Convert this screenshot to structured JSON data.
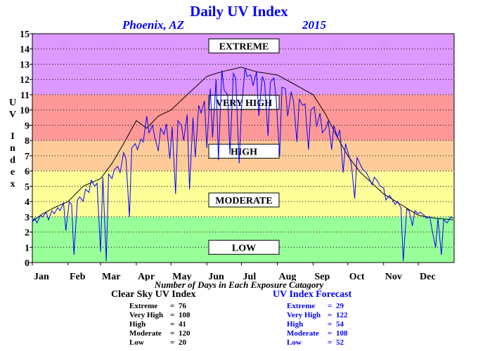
{
  "chart_data": {
    "type": "line",
    "title": "Daily UV Index",
    "location": "Phoenix, AZ",
    "year": "2015",
    "ylabel": "UV Index",
    "ylim": [
      0,
      15
    ],
    "yticks": [
      "0",
      "1",
      "2",
      "3",
      "4",
      "5",
      "6",
      "7",
      "8",
      "9",
      "10",
      "11",
      "12",
      "13",
      "14",
      "15"
    ],
    "month_labels": [
      "Jan",
      "Feb",
      "Mar",
      "Apr",
      "May",
      "Jun",
      "Jul",
      "Aug",
      "Sep",
      "Oct",
      "Nov",
      "Dec"
    ],
    "grid": "horizontal dotted",
    "bands": [
      {
        "label": "LOW",
        "from": 0,
        "to": 3,
        "color": "#99ff99"
      },
      {
        "label": "MODERATE",
        "from": 3,
        "to": 6,
        "color": "#ffff99"
      },
      {
        "label": "HIGH",
        "from": 6,
        "to": 8,
        "color": "#ffcc99"
      },
      {
        "label": "VERY HIGH",
        "from": 8,
        "to": 11,
        "color": "#ff9999"
      },
      {
        "label": "EXTREME",
        "from": 11,
        "to": 15,
        "color": "#dd99ff"
      }
    ],
    "band_label_values": [
      1,
      4.1,
      7.3,
      10.5,
      14.2
    ],
    "series": [
      {
        "color": "#000000",
        "day": [
          1,
          10,
          20,
          32,
          45,
          60,
          70,
          80,
          91,
          100,
          110,
          121,
          135,
          152,
          160,
          170,
          182,
          195,
          213,
          225,
          244,
          255,
          265,
          274,
          285,
          295,
          305,
          320,
          335,
          350,
          365
        ],
        "values": [
          2.7,
          3.2,
          3.6,
          4.0,
          5.0,
          5.5,
          6.5,
          7.8,
          9.3,
          8.8,
          9.6,
          10.0,
          11.0,
          12.2,
          12.4,
          12.6,
          12.8,
          12.5,
          12.3,
          11.8,
          11.0,
          9.7,
          8.2,
          7.0,
          5.9,
          5.2,
          4.5,
          3.8,
          3.1,
          2.9,
          2.8
        ]
      },
      {
        "color": "#0000ff",
        "day": [
          1,
          3,
          5,
          8,
          10,
          13,
          15,
          18,
          20,
          23,
          25,
          28,
          30,
          33,
          35,
          37,
          40,
          42,
          45,
          47,
          50,
          52,
          55,
          57,
          60,
          62,
          65,
          67,
          70,
          72,
          75,
          77,
          80,
          82,
          85,
          87,
          90,
          92,
          95,
          97,
          100,
          102,
          105,
          107,
          110,
          112,
          115,
          117,
          120,
          122,
          125,
          127,
          130,
          132,
          135,
          137,
          140,
          142,
          145,
          147,
          150,
          152,
          155,
          157,
          160,
          162,
          165,
          167,
          170,
          172,
          175,
          177,
          180,
          182,
          185,
          187,
          190,
          192,
          195,
          197,
          200,
          202,
          205,
          207,
          210,
          212,
          215,
          217,
          220,
          222,
          225,
          227,
          230,
          232,
          235,
          237,
          240,
          242,
          245,
          247,
          250,
          252,
          255,
          257,
          260,
          262,
          265,
          267,
          270,
          272,
          275,
          277,
          280,
          282,
          285,
          287,
          290,
          292,
          295,
          297,
          300,
          302,
          305,
          307,
          310,
          312,
          315,
          317,
          320,
          322,
          325,
          327,
          330,
          332,
          335,
          337,
          340,
          342,
          345,
          347,
          350,
          352,
          355,
          357,
          360,
          363,
          365
        ],
        "values": [
          2.7,
          2.9,
          2.6,
          3.1,
          3.0,
          3.3,
          2.8,
          3.4,
          3.2,
          3.6,
          3.4,
          3.9,
          2.1,
          4.0,
          3.8,
          0.5,
          4.1,
          4.3,
          4.0,
          4.8,
          4.6,
          5.4,
          5.0,
          5.2,
          0.7,
          5.6,
          0.1,
          5.8,
          5.5,
          6.1,
          6.3,
          5.9,
          7.2,
          6.8,
          3.0,
          7.5,
          7.8,
          7.4,
          8.1,
          7.9,
          9.6,
          8.5,
          9.0,
          8.2,
          7.3,
          8.8,
          8.4,
          9.1,
          6.8,
          8.9,
          4.5,
          9.3,
          9.0,
          8.0,
          9.7,
          4.8,
          9.5,
          6.9,
          10.3,
          9.8,
          10.6,
          7.5,
          11.4,
          8.2,
          12.0,
          6.7,
          12.6,
          11.3,
          11.0,
          7.1,
          12.4,
          12.1,
          6.5,
          10.1,
          12.7,
          12.2,
          12.3,
          11.6,
          12.5,
          9.6,
          12.2,
          11.8,
          8.3,
          11.8,
          12.1,
          10.8,
          7.0,
          11.5,
          11.4,
          9.6,
          11.2,
          10.6,
          7.9,
          10.7,
          10.3,
          10.4,
          7.4,
          10.0,
          10.2,
          8.9,
          9.8,
          8.5,
          8.8,
          9.3,
          7.4,
          9.0,
          8.2,
          8.7,
          5.9,
          7.8,
          7.0,
          6.5,
          4.2,
          6.9,
          6.4,
          6.1,
          5.9,
          5.6,
          5.1,
          5.6,
          5.3,
          5.0,
          4.9,
          4.1,
          4.4,
          4.2,
          3.8,
          4.0,
          3.6,
          0.1,
          3.5,
          3.4,
          2.4,
          3.4,
          3.2,
          3.3,
          3.1,
          2.9,
          3.0,
          2.1,
          1.0,
          2.9,
          0.5,
          2.8,
          2.6,
          3.0,
          2.9
        ]
      }
    ]
  },
  "footer": {
    "caption": "Number of Days in Each Exposure Catagory",
    "clear_sky": {
      "title": "Clear Sky UV Index",
      "rows": [
        {
          "label": "Extreme",
          "value": "76"
        },
        {
          "label": "Very High",
          "value": "108"
        },
        {
          "label": "High",
          "value": "41"
        },
        {
          "label": "Moderate",
          "value": "120"
        },
        {
          "label": "Low",
          "value": "20"
        }
      ]
    },
    "forecast": {
      "title": "UV Index Forecast",
      "rows": [
        {
          "label": "Extreme",
          "value": "29"
        },
        {
          "label": "Very High",
          "value": "122"
        },
        {
          "label": "High",
          "value": "54"
        },
        {
          "label": "Moderate",
          "value": "108"
        },
        {
          "label": "Low",
          "value": "52"
        }
      ]
    }
  },
  "colors": {
    "title": "#0000ff",
    "forecast_text": "#0000ff",
    "clear_sky_text": "#000000"
  }
}
